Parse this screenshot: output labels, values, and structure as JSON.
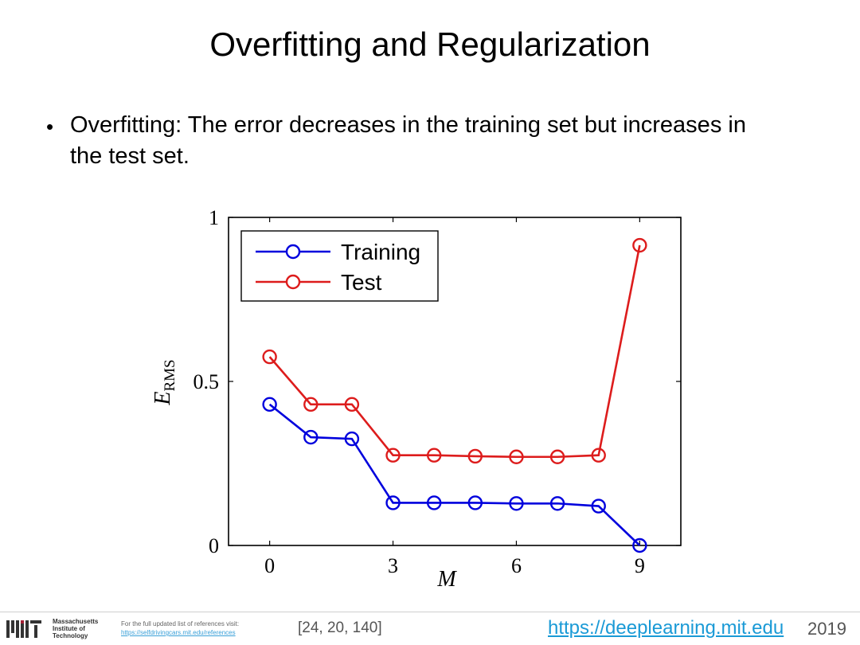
{
  "slide": {
    "title": "Overfitting and Regularization",
    "bullet": "Overfitting: The error decreases in the training set but increases in the test set."
  },
  "chart_data": {
    "type": "line",
    "x": [
      0,
      1,
      2,
      3,
      4,
      5,
      6,
      7,
      8,
      9
    ],
    "series": [
      {
        "name": "Training",
        "color": "#0000dd",
        "values": [
          0.43,
          0.33,
          0.325,
          0.13,
          0.13,
          0.13,
          0.128,
          0.128,
          0.12,
          0.0
        ]
      },
      {
        "name": "Test",
        "color": "#dd1c1c",
        "values": [
          0.575,
          0.43,
          0.43,
          0.275,
          0.275,
          0.272,
          0.27,
          0.27,
          0.275,
          0.915
        ]
      }
    ],
    "xlabel": "M",
    "ylabel_main": "E",
    "ylabel_sub": "RMS",
    "xlim": [
      -1,
      10
    ],
    "ylim": [
      0,
      1
    ],
    "xticks": [
      0,
      3,
      6,
      9
    ],
    "yticks": [
      0,
      0.5,
      1
    ],
    "ytick_labels": [
      "0",
      "0.5",
      "1"
    ],
    "legend_position": "top-left",
    "grid": false
  },
  "footer": {
    "mit_name": [
      "Massachusetts",
      "Institute of",
      "Technology"
    ],
    "ref_note": "For the full updated list of references visit:",
    "ref_link": "https://selfdrivingcars.mit.edu/references",
    "refs": "[24, 20, 140]",
    "site": "https://deeplearning.mit.edu",
    "year": "2019"
  }
}
